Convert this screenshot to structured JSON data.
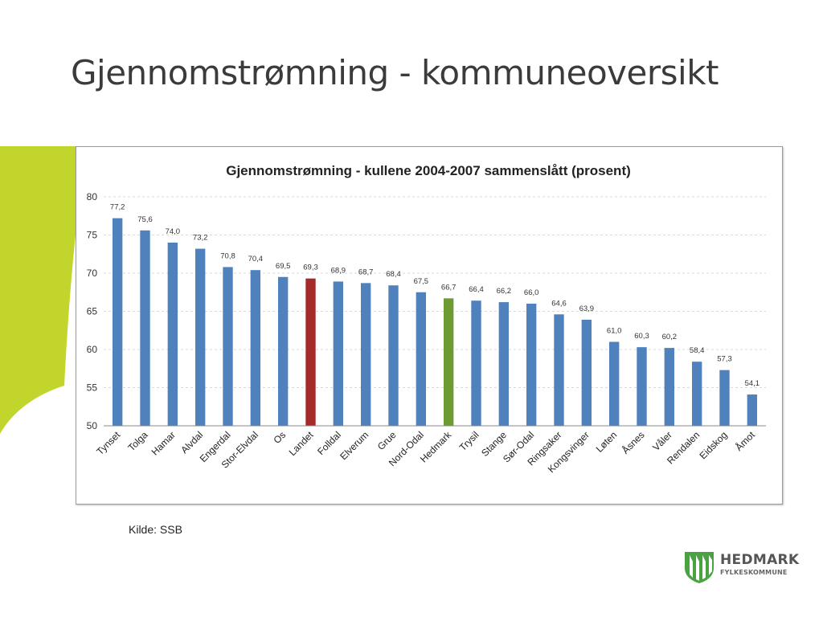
{
  "slide": {
    "title": "Gjennomstrømning - kommuneoversikt",
    "source": "Kilde: SSB"
  },
  "logo": {
    "name": "HEDMARK",
    "subtitle": "FYLKESKOMMUNE"
  },
  "colors": {
    "accent_green": "#c2d52d",
    "bar_default": "#4f81bd",
    "bar_landet": "#a52a2a",
    "bar_hedmark": "#6e9a34",
    "logo_green": "#4aa341"
  },
  "chart_data": {
    "type": "bar",
    "title": "Gjennomstrømning - kullene 2004-2007 sammenslått (prosent)",
    "xlabel": "",
    "ylabel": "",
    "ylim": [
      50,
      80
    ],
    "yticks": [
      50,
      55,
      60,
      65,
      70,
      75,
      80
    ],
    "grid": true,
    "categories": [
      "Tynset",
      "Tolga",
      "Hamar",
      "Alvdal",
      "Engerdal",
      "Stor-Elvdal",
      "Os",
      "Landet",
      "Folldal",
      "Elverum",
      "Grue",
      "Nord-Odal",
      "Hedmark",
      "Trysil",
      "Stange",
      "Sør-Odal",
      "Ringsaker",
      "Kongsvinger",
      "Løten",
      "Åsnes",
      "Våler",
      "Rendalen",
      "Eidskog",
      "Åmot"
    ],
    "values": [
      77.2,
      75.6,
      74.0,
      73.2,
      70.8,
      70.4,
      69.5,
      69.3,
      68.9,
      68.7,
      68.4,
      67.5,
      66.7,
      66.4,
      66.2,
      66.0,
      64.6,
      63.9,
      61.0,
      60.3,
      60.2,
      58.4,
      57.3,
      54.1
    ],
    "value_labels": [
      "77,2",
      "75,6",
      "74,0",
      "73,2",
      "70,8",
      "70,4",
      "69,5",
      "69,3",
      "68,9",
      "68,7",
      "68,4",
      "67,5",
      "66,7",
      "66,4",
      "66,2",
      "66,0",
      "64,6",
      "63,9",
      "61,0",
      "60,3",
      "60,2",
      "58,4",
      "57,3",
      "54,1"
    ],
    "highlight": {
      "Landet": "#a52a2a",
      "Hedmark": "#6e9a34"
    }
  }
}
